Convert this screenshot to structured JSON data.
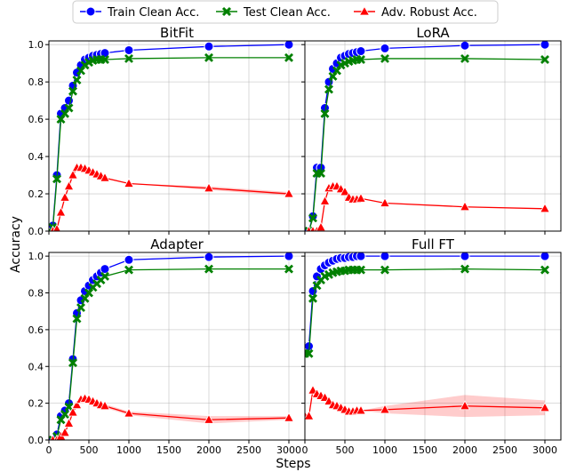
{
  "figure": {
    "xlabel": "Steps",
    "ylabel": "Accuracy"
  },
  "legend": {
    "placement": "top-center",
    "items": [
      {
        "label": "Train Clean Acc.",
        "color": "#0000ff",
        "marker": "circle"
      },
      {
        "label": "Test Clean Acc.",
        "color": "#008000",
        "marker": "x"
      },
      {
        "label": "Adv. Robust Acc.",
        "color": "#ff0000",
        "marker": "triangle"
      }
    ]
  },
  "chart_data": [
    {
      "type": "line",
      "title": "BitFit",
      "xlim": [
        0,
        3200
      ],
      "ylim": [
        0,
        1.02
      ],
      "xticks": [
        0,
        500,
        1000,
        1500,
        2000,
        2500,
        3000
      ],
      "yticks": [
        0.0,
        0.2,
        0.4,
        0.6,
        0.8,
        1.0
      ],
      "grid": true,
      "series": [
        {
          "name": "Train Clean Acc.",
          "color": "#0000ff",
          "x": [
            50,
            100,
            150,
            200,
            250,
            300,
            350,
            400,
            450,
            500,
            550,
            600,
            650,
            700,
            1000,
            2000,
            3000
          ],
          "y": [
            0.03,
            0.3,
            0.63,
            0.66,
            0.7,
            0.78,
            0.85,
            0.89,
            0.92,
            0.93,
            0.94,
            0.945,
            0.95,
            0.955,
            0.97,
            0.99,
            1.0
          ]
        },
        {
          "name": "Test Clean Acc.",
          "color": "#008000",
          "x": [
            50,
            100,
            150,
            200,
            250,
            300,
            350,
            400,
            450,
            500,
            550,
            600,
            650,
            700,
            1000,
            2000,
            3000
          ],
          "y": [
            0.02,
            0.28,
            0.6,
            0.63,
            0.66,
            0.75,
            0.81,
            0.86,
            0.89,
            0.905,
            0.915,
            0.92,
            0.92,
            0.92,
            0.925,
            0.93,
            0.93
          ]
        },
        {
          "name": "Adv. Robust Acc.",
          "color": "#ff0000",
          "x": [
            50,
            100,
            150,
            200,
            250,
            300,
            350,
            400,
            450,
            500,
            550,
            600,
            650,
            700,
            1000,
            2000,
            3000
          ],
          "y": [
            0.0,
            0.01,
            0.1,
            0.18,
            0.24,
            0.3,
            0.34,
            0.34,
            0.335,
            0.325,
            0.315,
            0.305,
            0.295,
            0.285,
            0.255,
            0.23,
            0.2
          ],
          "band": [
            0.0,
            0.0,
            0.0,
            0.0,
            0.0,
            0.0,
            0.0,
            0.0,
            0.0,
            0.0,
            0.0,
            0.0,
            0.0,
            0.0,
            0.0,
            0.01,
            0.01
          ]
        }
      ]
    },
    {
      "type": "line",
      "title": "LoRA",
      "xlim": [
        0,
        3200
      ],
      "ylim": [
        0,
        1.02
      ],
      "xticks": [
        0,
        500,
        1000,
        1500,
        2000,
        2500,
        3000
      ],
      "yticks": [
        0.0,
        0.2,
        0.4,
        0.6,
        0.8,
        1.0
      ],
      "grid": true,
      "series": [
        {
          "name": "Train Clean Acc.",
          "color": "#0000ff",
          "x": [
            50,
            100,
            150,
            200,
            250,
            300,
            350,
            400,
            450,
            500,
            550,
            600,
            650,
            700,
            1000,
            2000,
            3000
          ],
          "y": [
            0.0,
            0.08,
            0.34,
            0.34,
            0.66,
            0.8,
            0.87,
            0.9,
            0.93,
            0.94,
            0.95,
            0.955,
            0.96,
            0.965,
            0.98,
            0.995,
            1.0
          ]
        },
        {
          "name": "Test Clean Acc.",
          "color": "#008000",
          "x": [
            50,
            100,
            150,
            200,
            250,
            300,
            350,
            400,
            450,
            500,
            550,
            600,
            650,
            700,
            1000,
            2000,
            3000
          ],
          "y": [
            0.0,
            0.07,
            0.31,
            0.31,
            0.63,
            0.76,
            0.83,
            0.86,
            0.89,
            0.9,
            0.91,
            0.915,
            0.92,
            0.92,
            0.925,
            0.925,
            0.92
          ]
        },
        {
          "name": "Adv. Robust Acc.",
          "color": "#ff0000",
          "x": [
            50,
            100,
            150,
            200,
            250,
            300,
            350,
            400,
            450,
            500,
            550,
            600,
            650,
            700,
            1000,
            2000,
            3000
          ],
          "y": [
            0.0,
            0.0,
            0.0,
            0.02,
            0.16,
            0.23,
            0.24,
            0.24,
            0.225,
            0.21,
            0.18,
            0.17,
            0.17,
            0.175,
            0.15,
            0.13,
            0.12
          ],
          "band": [
            0.0,
            0.0,
            0.0,
            0.0,
            0.0,
            0.0,
            0.0,
            0.0,
            0.0,
            0.0,
            0.01,
            0.02,
            0.02,
            0.0,
            0.0,
            0.0,
            0.0
          ]
        }
      ]
    },
    {
      "type": "line",
      "title": "Adapter",
      "xlim": [
        0,
        3200
      ],
      "ylim": [
        0,
        1.02
      ],
      "xticks": [
        0,
        500,
        1000,
        1500,
        2000,
        2500,
        3000
      ],
      "yticks": [
        0.0,
        0.2,
        0.4,
        0.6,
        0.8,
        1.0
      ],
      "grid": true,
      "series": [
        {
          "name": "Train Clean Acc.",
          "color": "#0000ff",
          "x": [
            50,
            100,
            150,
            200,
            250,
            300,
            350,
            400,
            450,
            500,
            550,
            600,
            650,
            700,
            1000,
            2000,
            3000
          ],
          "y": [
            0.0,
            0.03,
            0.13,
            0.16,
            0.2,
            0.44,
            0.69,
            0.76,
            0.81,
            0.84,
            0.87,
            0.89,
            0.91,
            0.93,
            0.98,
            0.995,
            1.0
          ]
        },
        {
          "name": "Test Clean Acc.",
          "color": "#008000",
          "x": [
            50,
            100,
            150,
            200,
            250,
            300,
            350,
            400,
            450,
            500,
            550,
            600,
            650,
            700,
            1000,
            2000,
            3000
          ],
          "y": [
            0.0,
            0.02,
            0.11,
            0.14,
            0.18,
            0.42,
            0.66,
            0.72,
            0.77,
            0.8,
            0.83,
            0.85,
            0.87,
            0.89,
            0.925,
            0.93,
            0.93
          ]
        },
        {
          "name": "Adv. Robust Acc.",
          "color": "#ff0000",
          "x": [
            50,
            100,
            150,
            200,
            250,
            300,
            350,
            400,
            450,
            500,
            550,
            600,
            650,
            700,
            1000,
            2000,
            3000
          ],
          "y": [
            0.0,
            0.0,
            0.02,
            0.04,
            0.09,
            0.15,
            0.19,
            0.22,
            0.225,
            0.22,
            0.21,
            0.2,
            0.19,
            0.185,
            0.145,
            0.11,
            0.12
          ],
          "band": [
            0.0,
            0.0,
            0.0,
            0.0,
            0.0,
            0.0,
            0.0,
            0.0,
            0.0,
            0.0,
            0.0,
            0.0,
            0.0,
            0.01,
            0.01,
            0.02,
            0.01
          ]
        }
      ]
    },
    {
      "type": "line",
      "title": "Full FT",
      "xlim": [
        0,
        3200
      ],
      "ylim": [
        0,
        1.02
      ],
      "xticks": [
        0,
        500,
        1000,
        1500,
        2000,
        2500,
        3000
      ],
      "yticks": [
        0.0,
        0.2,
        0.4,
        0.6,
        0.8,
        1.0
      ],
      "grid": true,
      "series": [
        {
          "name": "Train Clean Acc.",
          "color": "#0000ff",
          "x": [
            0,
            50,
            100,
            150,
            200,
            250,
            300,
            350,
            400,
            450,
            500,
            550,
            600,
            650,
            700,
            1000,
            2000,
            3000
          ],
          "y": [
            0.51,
            0.51,
            0.81,
            0.89,
            0.93,
            0.95,
            0.965,
            0.975,
            0.985,
            0.99,
            0.99,
            0.995,
            0.995,
            1.0,
            1.0,
            1.0,
            1.0,
            1.0
          ]
        },
        {
          "name": "Test Clean Acc.",
          "color": "#008000",
          "x": [
            0,
            50,
            100,
            150,
            200,
            250,
            300,
            350,
            400,
            450,
            500,
            550,
            600,
            650,
            700,
            1000,
            2000,
            3000
          ],
          "y": [
            0.47,
            0.47,
            0.77,
            0.84,
            0.87,
            0.89,
            0.9,
            0.91,
            0.915,
            0.92,
            0.92,
            0.925,
            0.925,
            0.925,
            0.925,
            0.925,
            0.93,
            0.925
          ]
        },
        {
          "name": "Adv. Robust Acc.",
          "color": "#ff0000",
          "x": [
            0,
            50,
            100,
            150,
            200,
            250,
            300,
            350,
            400,
            450,
            500,
            550,
            600,
            650,
            700,
            1000,
            2000,
            3000
          ],
          "y": [
            0.13,
            0.13,
            0.27,
            0.25,
            0.24,
            0.23,
            0.21,
            0.19,
            0.185,
            0.175,
            0.165,
            0.155,
            0.155,
            0.16,
            0.16,
            0.165,
            0.185,
            0.175
          ],
          "band": [
            0.0,
            0.0,
            0.0,
            0.0,
            0.0,
            0.0,
            0.0,
            0.0,
            0.0,
            0.0,
            0.0,
            0.0,
            0.0,
            0.0,
            0.0,
            0.02,
            0.06,
            0.04
          ]
        }
      ]
    }
  ]
}
